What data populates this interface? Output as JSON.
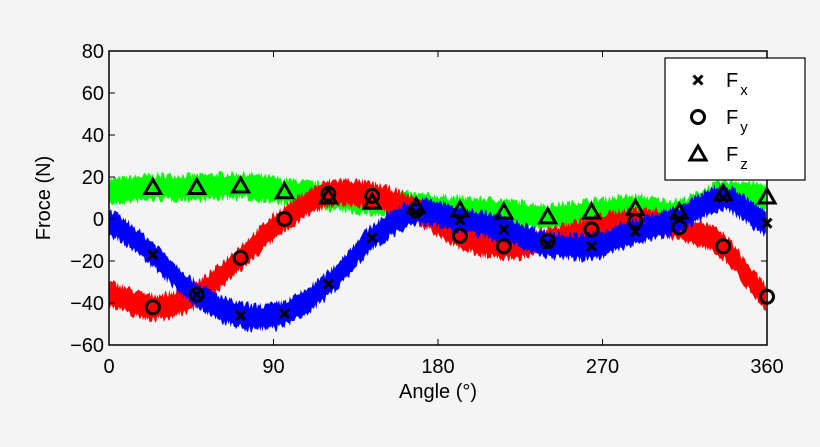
{
  "chart_data": {
    "type": "scatter",
    "title": "",
    "xlabel": "Angle (°)",
    "ylabel": "Froce (N)",
    "xlim": [
      0,
      360
    ],
    "ylim": [
      -60,
      80
    ],
    "xticks": [
      "0",
      "90",
      "180",
      "270",
      "360"
    ],
    "yticks": [
      "−60",
      "−40",
      "−20",
      "0",
      "20",
      "40",
      "60",
      "80"
    ],
    "grid": false,
    "legend_position": "top-right",
    "x": [
      0,
      24,
      48,
      72,
      96,
      120,
      144,
      168,
      192,
      216,
      240,
      264,
      288,
      312,
      336,
      360
    ],
    "series": [
      {
        "name": "F",
        "subscript": "x",
        "marker": "x",
        "band_color": "#0000ff",
        "values": [
          -2,
          -17,
          -36,
          -46,
          -45,
          -31,
          -9,
          3,
          -0.5,
          -5,
          -12,
          -13,
          -6,
          0,
          10,
          -2
        ]
      },
      {
        "name": "F",
        "subscript": "y",
        "marker": "o",
        "band_color": "#ff0000",
        "values": [
          -36,
          -42,
          -36,
          -18.5,
          0,
          12,
          11,
          4,
          -8,
          -13,
          -10.5,
          -5,
          -1,
          -4,
          -13,
          -37
        ]
      },
      {
        "name": "F",
        "subscript": "z",
        "marker": "triangle",
        "band_color": "#00ff00",
        "values": [
          13,
          15,
          15,
          15.7,
          13,
          10.5,
          8,
          6,
          4.3,
          3.3,
          1,
          3.3,
          5,
          3.3,
          12,
          10.5
        ]
      }
    ]
  }
}
